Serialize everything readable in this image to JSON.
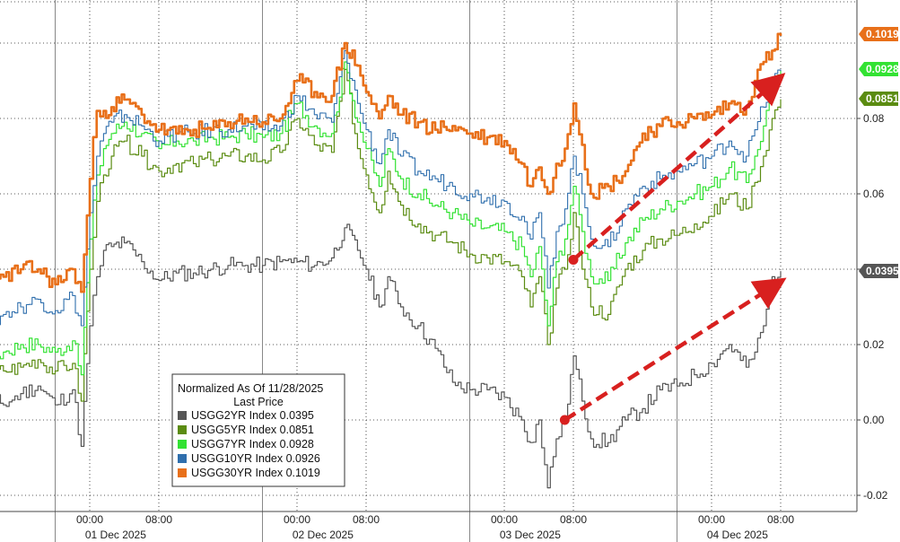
{
  "chart_data": {
    "type": "line",
    "title": "",
    "xlabel": "",
    "ylabel": "",
    "ylim": [
      -0.022,
      0.11
    ],
    "y_ticks": [
      -0.02,
      0.0,
      0.02,
      0.04,
      0.06,
      0.08
    ],
    "y_tick_labels": [
      "-0.02",
      "0.00",
      "0.02",
      "0.04",
      "0.06",
      "0.08"
    ],
    "xlim_hours": [
      0,
      96
    ],
    "x_ticks": [
      {
        "label": "00:00",
        "hour": 16
      },
      {
        "label": "08:00",
        "hour": 24
      },
      {
        "label": "00:00",
        "hour": 40
      },
      {
        "label": "08:00",
        "hour": 48
      },
      {
        "label": "00:00",
        "hour": 64
      },
      {
        "label": "08:00",
        "hour": 72
      },
      {
        "label": "00:00",
        "hour": 88
      },
      {
        "label": "08:00",
        "hour": 96
      }
    ],
    "date_labels": [
      {
        "label": "01 Dec 2025",
        "hour": 19
      },
      {
        "label": "02 Dec 2025",
        "hour": 43
      },
      {
        "label": "03 Dec 2025",
        "hour": 67
      },
      {
        "label": "04 Dec 2025",
        "hour": 91
      }
    ],
    "grid": true,
    "legend": {
      "placement": "bottom-center",
      "title_line1": "Normalized As Of 11/28/2025",
      "title_line2": "Last Price",
      "entries": [
        {
          "label": "USGG2YR Index",
          "value": "0.0395",
          "color": "#555555"
        },
        {
          "label": "USGG5YR Index",
          "value": "0.0851",
          "color": "#5b8c12"
        },
        {
          "label": "USGG7YR Index",
          "value": "0.0928",
          "color": "#33e233"
        },
        {
          "label": "USGG10YR Index",
          "value": "0.0926",
          "color": "#2f6fad"
        },
        {
          "label": "USGG30YR Index",
          "value": "0.1019",
          "color": "#e8701a"
        }
      ]
    },
    "last_value_labels": [
      {
        "text": "0.1019",
        "value": 0.1019,
        "bg": "#e8701a",
        "fg": "#ffffff"
      },
      {
        "text": "0.0928",
        "value": 0.0928,
        "bg": "#33e233",
        "fg": "#ffffff"
      },
      {
        "text": "0.0851",
        "value": 0.0851,
        "bg": "#5b8c12",
        "fg": "#ffffff"
      },
      {
        "text": "0.0395",
        "value": 0.0395,
        "bg": "#555555",
        "fg": "#ffffff"
      }
    ],
    "series": [
      {
        "name": "USGG2YR Index",
        "color": "#555555",
        "width": 1.2,
        "hours": [
          0,
          0.8,
          2,
          4,
          6,
          8,
          10,
          12,
          14,
          15,
          16,
          16.8,
          17.6,
          18.5,
          20,
          22,
          24,
          26,
          28,
          30,
          32,
          34,
          36,
          38,
          40,
          42,
          44,
          45.5,
          47,
          48,
          49.5,
          50.5,
          52,
          54,
          56,
          58,
          60,
          62,
          64,
          66,
          67,
          68,
          69,
          70,
          71,
          72,
          73,
          74,
          76,
          78,
          80,
          82,
          84,
          86,
          88,
          90,
          92,
          93,
          94,
          95,
          96
        ],
        "values": [
          0.005,
          0.015,
          0.003,
          0.006,
          0.004,
          0.007,
          0.009,
          0.004,
          0.008,
          -0.007,
          0.025,
          0.038,
          0.045,
          0.046,
          0.047,
          0.042,
          0.037,
          0.039,
          0.039,
          0.04,
          0.041,
          0.041,
          0.041,
          0.042,
          0.042,
          0.041,
          0.043,
          0.051,
          0.045,
          0.04,
          0.03,
          0.038,
          0.03,
          0.025,
          0.019,
          0.01,
          0.008,
          0.008,
          0.006,
          0.0,
          -0.006,
          0.0,
          -0.018,
          -0.005,
          0.0,
          0.017,
          0.005,
          -0.005,
          -0.006,
          0.0,
          0.003,
          0.008,
          0.009,
          0.012,
          0.015,
          0.02,
          0.014,
          0.018,
          0.025,
          0.038,
          0.0395
        ]
      },
      {
        "name": "USGG5YR Index",
        "color": "#5b8c12",
        "width": 1.2,
        "hours": [
          0,
          0.8,
          2,
          4,
          6,
          8,
          10,
          12,
          14,
          15,
          16,
          16.8,
          17.6,
          18.5,
          20,
          22,
          24,
          26,
          28,
          30,
          32,
          34,
          36,
          38,
          40,
          42,
          44,
          45.5,
          47,
          48,
          49.5,
          50.5,
          52,
          54,
          56,
          58,
          60,
          62,
          64,
          66,
          67,
          68,
          69,
          70,
          71,
          72,
          73,
          74,
          76,
          78,
          80,
          82,
          84,
          86,
          88,
          90,
          92,
          93,
          94,
          95,
          96
        ],
        "values": [
          0.005,
          0.015,
          0.01,
          0.012,
          0.013,
          0.014,
          0.016,
          0.013,
          0.015,
          0.005,
          0.04,
          0.058,
          0.065,
          0.07,
          0.074,
          0.07,
          0.066,
          0.068,
          0.068,
          0.069,
          0.07,
          0.07,
          0.069,
          0.071,
          0.08,
          0.073,
          0.071,
          0.093,
          0.072,
          0.065,
          0.055,
          0.066,
          0.057,
          0.052,
          0.049,
          0.047,
          0.044,
          0.043,
          0.042,
          0.038,
          0.03,
          0.038,
          0.02,
          0.035,
          0.04,
          0.055,
          0.04,
          0.03,
          0.028,
          0.04,
          0.045,
          0.048,
          0.049,
          0.052,
          0.054,
          0.06,
          0.056,
          0.063,
          0.07,
          0.08,
          0.0851
        ]
      },
      {
        "name": "USGG7YR Index",
        "color": "#33e233",
        "width": 1.2,
        "hours": [
          0,
          0.8,
          2,
          4,
          6,
          8,
          10,
          12,
          14,
          15,
          16,
          16.8,
          17.6,
          18.5,
          20,
          22,
          24,
          26,
          28,
          30,
          32,
          34,
          36,
          38,
          40,
          42,
          44,
          45.5,
          47,
          48,
          49.5,
          50.5,
          52,
          54,
          56,
          58,
          60,
          62,
          64,
          66,
          67,
          68,
          69,
          70,
          71,
          72,
          73,
          74,
          76,
          78,
          80,
          82,
          84,
          86,
          88,
          90,
          92,
          93,
          94,
          95,
          96
        ],
        "values": [
          0.005,
          0.017,
          0.015,
          0.016,
          0.018,
          0.02,
          0.02,
          0.018,
          0.021,
          0.012,
          0.048,
          0.065,
          0.072,
          0.076,
          0.079,
          0.076,
          0.072,
          0.074,
          0.074,
          0.075,
          0.075,
          0.076,
          0.075,
          0.076,
          0.084,
          0.078,
          0.076,
          0.095,
          0.079,
          0.072,
          0.062,
          0.072,
          0.064,
          0.06,
          0.057,
          0.055,
          0.052,
          0.051,
          0.05,
          0.046,
          0.038,
          0.046,
          0.025,
          0.042,
          0.048,
          0.062,
          0.05,
          0.038,
          0.037,
          0.047,
          0.053,
          0.056,
          0.058,
          0.06,
          0.062,
          0.067,
          0.063,
          0.07,
          0.078,
          0.088,
          0.0928
        ]
      },
      {
        "name": "USGG10YR Index",
        "color": "#2f6fad",
        "width": 1.1,
        "hours": [
          0,
          0.8,
          2,
          4,
          6,
          8,
          10,
          12,
          14,
          15,
          16,
          16.8,
          17.6,
          18.5,
          20,
          22,
          24,
          26,
          28,
          30,
          32,
          34,
          36,
          38,
          40,
          42,
          44,
          45.5,
          47,
          48,
          49.5,
          50.5,
          52,
          54,
          56,
          58,
          60,
          62,
          64,
          66,
          67,
          68,
          69,
          70,
          71,
          72,
          73,
          74,
          76,
          78,
          80,
          82,
          84,
          86,
          88,
          90,
          92,
          93,
          94,
          95,
          96
        ],
        "values": [
          0.005,
          0.022,
          0.022,
          0.025,
          0.028,
          0.03,
          0.032,
          0.029,
          0.033,
          0.025,
          0.055,
          0.07,
          0.076,
          0.079,
          0.081,
          0.078,
          0.074,
          0.076,
          0.076,
          0.077,
          0.077,
          0.078,
          0.077,
          0.078,
          0.086,
          0.081,
          0.079,
          0.098,
          0.084,
          0.077,
          0.068,
          0.077,
          0.07,
          0.066,
          0.064,
          0.062,
          0.06,
          0.059,
          0.058,
          0.054,
          0.048,
          0.055,
          0.035,
          0.05,
          0.056,
          0.07,
          0.06,
          0.048,
          0.046,
          0.056,
          0.062,
          0.064,
          0.066,
          0.068,
          0.07,
          0.074,
          0.07,
          0.077,
          0.083,
          0.09,
          0.0926
        ]
      },
      {
        "name": "USGG30YR Index",
        "color": "#e8701a",
        "width": 2.6,
        "hours": [
          0,
          0.8,
          2,
          4,
          6,
          8,
          10,
          12,
          14,
          15,
          16,
          16.8,
          17.6,
          18.5,
          20,
          22,
          24,
          26,
          28,
          30,
          32,
          34,
          36,
          38,
          40,
          42,
          44,
          45.5,
          47,
          48,
          49.5,
          50.5,
          52,
          54,
          56,
          58,
          60,
          62,
          64,
          66,
          67,
          68,
          69,
          70,
          71,
          72,
          73,
          74,
          76,
          78,
          80,
          82,
          84,
          86,
          88,
          90,
          92,
          93,
          94,
          95,
          96
        ],
        "values": [
          0.005,
          0.02,
          0.028,
          0.032,
          0.038,
          0.04,
          0.04,
          0.036,
          0.04,
          0.034,
          0.064,
          0.082,
          0.082,
          0.083,
          0.085,
          0.081,
          0.077,
          0.076,
          0.077,
          0.077,
          0.079,
          0.08,
          0.079,
          0.08,
          0.09,
          0.087,
          0.086,
          0.1,
          0.094,
          0.087,
          0.08,
          0.086,
          0.081,
          0.079,
          0.077,
          0.078,
          0.076,
          0.075,
          0.074,
          0.068,
          0.062,
          0.067,
          0.06,
          0.068,
          0.072,
          0.084,
          0.073,
          0.06,
          0.062,
          0.066,
          0.076,
          0.078,
          0.079,
          0.08,
          0.081,
          0.084,
          0.083,
          0.09,
          0.095,
          0.098,
          0.1019
        ]
      }
    ],
    "annotations": [
      {
        "type": "dashed-arrow",
        "color": "#d8201f",
        "from": {
          "hour": 72,
          "value": 0.0425
        },
        "to": {
          "hour": 95.5,
          "value": 0.09
        }
      },
      {
        "type": "dashed-arrow",
        "color": "#d8201f",
        "from": {
          "hour": 71,
          "value": 0.0
        },
        "to": {
          "hour": 95.5,
          "value": 0.036
        }
      }
    ]
  }
}
